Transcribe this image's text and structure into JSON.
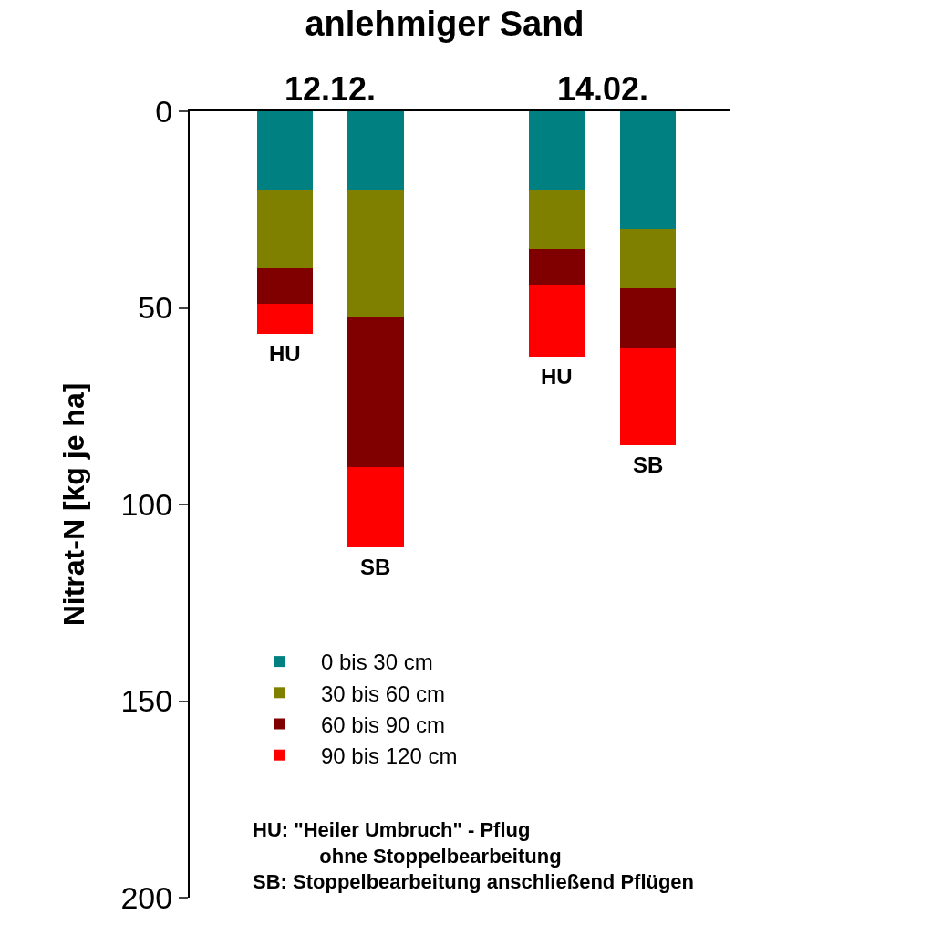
{
  "chart_data": {
    "type": "bar",
    "title": "anlehmiger Sand",
    "ylabel": "Nitrat-N [kg je ha]",
    "categories": [
      null,
      null,
      null,
      null,
      null
    ],
    "series": [
      {
        "name": "0 bis 30 cm",
        "color": "#008080",
        "values": [
          20,
          20,
          null,
          20,
          30
        ]
      },
      {
        "name": "30 bis 60 cm",
        "color": "#808000",
        "values": [
          20,
          32.5,
          null,
          15,
          15
        ]
      },
      {
        "name": "60 bis 90 cm",
        "color": "#800000",
        "values": [
          9,
          38,
          null,
          9,
          15
        ]
      },
      {
        "name": "90 bis 120 cm",
        "color": "#ff0000",
        "values": [
          7.5,
          20.5,
          null,
          18.5,
          25
        ]
      }
    ],
    "stacked": true,
    "ylim": [
      200,
      0
    ],
    "yticks": [
      0,
      50,
      100,
      150,
      200
    ],
    "annotations": [
      "12.12.",
      "14.02.",
      "HU",
      "SB",
      "HU",
      "SB",
      "HU: \"Heiler Umbruch\" - Pflug\n      ohne Stoppelbearbeitung\nSB: Stoppelbearbeitung anschließend Pflügen"
    ],
    "legend": "bottom left",
    "grid": false
  }
}
